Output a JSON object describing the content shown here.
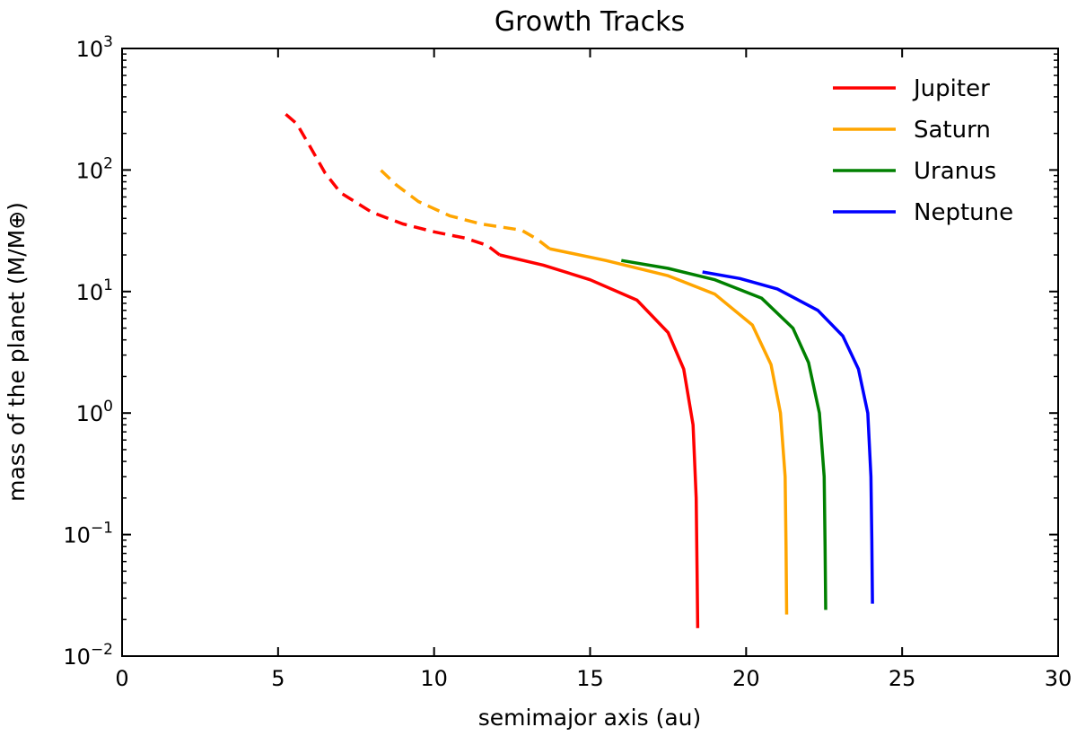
{
  "chart_data": {
    "type": "line",
    "title": "Growth Tracks",
    "xlabel": "semimajor axis (au)",
    "ylabel": "mass of the planet (M/M⊕)",
    "xlim": [
      0,
      30
    ],
    "ylim": [
      0.01,
      1000
    ],
    "yscale": "log",
    "grid": false,
    "legend_position": "top-right",
    "x_ticks": [
      0,
      5,
      10,
      15,
      20,
      25,
      30
    ],
    "x_tick_labels": [
      "0",
      "5",
      "10",
      "15",
      "20",
      "25",
      "30"
    ],
    "y_ticks": [
      0.01,
      0.1,
      1,
      10,
      100,
      1000
    ],
    "y_tick_labels": [
      {
        "base": "10",
        "exp": "−2"
      },
      {
        "base": "10",
        "exp": "−1"
      },
      {
        "base": "10",
        "exp": "0"
      },
      {
        "base": "10",
        "exp": "1"
      },
      {
        "base": "10",
        "exp": "2"
      },
      {
        "base": "10",
        "exp": "3"
      }
    ],
    "series": [
      {
        "name": "Jupiter",
        "color": "#ff0000",
        "solid": [
          [
            18.45,
            0.017
          ],
          [
            18.43,
            0.05
          ],
          [
            18.4,
            0.2
          ],
          [
            18.3,
            0.8
          ],
          [
            18.0,
            2.3
          ],
          [
            17.5,
            4.6
          ],
          [
            16.5,
            8.5
          ],
          [
            15.0,
            12.5
          ],
          [
            13.5,
            16.5
          ],
          [
            12.1,
            20
          ]
        ],
        "dashed": [
          [
            12.1,
            20
          ],
          [
            11.7,
            24
          ],
          [
            11.0,
            27.5
          ],
          [
            10.0,
            31
          ],
          [
            9.0,
            36
          ],
          [
            8.0,
            45
          ],
          [
            7.0,
            65
          ],
          [
            6.5,
            95
          ],
          [
            6.0,
            160
          ],
          [
            5.6,
            240
          ],
          [
            5.1,
            310
          ]
        ]
      },
      {
        "name": "Saturn",
        "color": "#ffa500",
        "solid": [
          [
            21.3,
            0.022
          ],
          [
            21.28,
            0.08
          ],
          [
            21.25,
            0.3
          ],
          [
            21.1,
            1.0
          ],
          [
            20.8,
            2.5
          ],
          [
            20.2,
            5.3
          ],
          [
            19.0,
            9.5
          ],
          [
            17.5,
            13.5
          ],
          [
            15.5,
            18
          ],
          [
            13.7,
            22.5
          ]
        ],
        "dashed": [
          [
            13.7,
            22.5
          ],
          [
            13.3,
            27
          ],
          [
            12.8,
            32
          ],
          [
            11.5,
            36
          ],
          [
            10.5,
            42
          ],
          [
            9.5,
            55
          ],
          [
            8.8,
            75
          ],
          [
            8.2,
            105
          ]
        ]
      },
      {
        "name": "Uranus",
        "color": "#008000",
        "solid": [
          [
            22.55,
            0.024
          ],
          [
            22.53,
            0.08
          ],
          [
            22.5,
            0.3
          ],
          [
            22.35,
            1.0
          ],
          [
            22.0,
            2.6
          ],
          [
            21.5,
            5.0
          ],
          [
            20.5,
            8.8
          ],
          [
            19.0,
            12.5
          ],
          [
            17.5,
            15.5
          ],
          [
            16.0,
            18
          ]
        ],
        "dashed": []
      },
      {
        "name": "Neptune",
        "color": "#0000ff",
        "solid": [
          [
            24.05,
            0.027
          ],
          [
            24.03,
            0.09
          ],
          [
            24.0,
            0.3
          ],
          [
            23.9,
            1.0
          ],
          [
            23.6,
            2.3
          ],
          [
            23.1,
            4.3
          ],
          [
            22.3,
            7.0
          ],
          [
            21.0,
            10.5
          ],
          [
            19.8,
            12.8
          ],
          [
            18.6,
            14.5
          ]
        ],
        "dashed": []
      }
    ]
  }
}
